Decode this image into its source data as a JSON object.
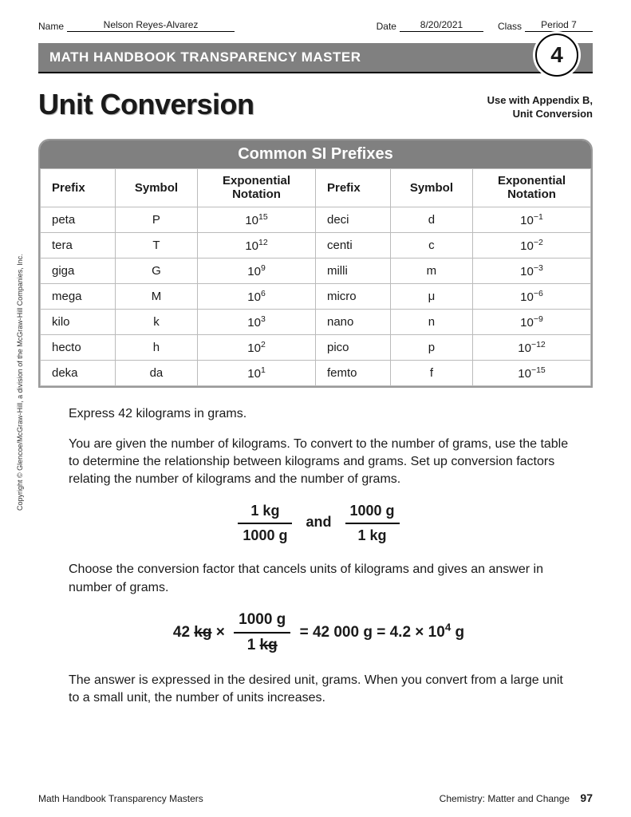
{
  "header": {
    "name_label": "Name",
    "name_value": "Nelson Reyes-Alvarez",
    "date_label": "Date",
    "date_value": "8/20/2021",
    "class_label": "Class",
    "class_value": "Period 7"
  },
  "banner": {
    "text": "MATH HANDBOOK TRANSPARENCY MASTER",
    "badge_number": "4"
  },
  "title": "Unit Conversion",
  "use_with": {
    "line1": "Use with Appendix B,",
    "line2": "Unit Conversion"
  },
  "table": {
    "title": "Common SI Prefixes",
    "headers": {
      "prefix": "Prefix",
      "symbol": "Symbol",
      "notation_l1": "Exponential",
      "notation_l2": "Notation"
    },
    "rows": [
      {
        "prefix": "peta",
        "symbol": "P",
        "base": "10",
        "exp": "15",
        "prefix2": "deci",
        "symbol2": "d",
        "base2": "10",
        "exp2": "−1"
      },
      {
        "prefix": "tera",
        "symbol": "T",
        "base": "10",
        "exp": "12",
        "prefix2": "centi",
        "symbol2": "c",
        "base2": "10",
        "exp2": "−2"
      },
      {
        "prefix": "giga",
        "symbol": "G",
        "base": "10",
        "exp": "9",
        "prefix2": "milli",
        "symbol2": "m",
        "base2": "10",
        "exp2": "−3"
      },
      {
        "prefix": "mega",
        "symbol": "M",
        "base": "10",
        "exp": "6",
        "prefix2": "micro",
        "symbol2": "μ",
        "base2": "10",
        "exp2": "−6"
      },
      {
        "prefix": "kilo",
        "symbol": "k",
        "base": "10",
        "exp": "3",
        "prefix2": "nano",
        "symbol2": "n",
        "base2": "10",
        "exp2": "−9"
      },
      {
        "prefix": "hecto",
        "symbol": "h",
        "base": "10",
        "exp": "2",
        "prefix2": "pico",
        "symbol2": "p",
        "base2": "10",
        "exp2": "−12"
      },
      {
        "prefix": "deka",
        "symbol": "da",
        "base": "10",
        "exp": "1",
        "prefix2": "femto",
        "symbol2": "f",
        "base2": "10",
        "exp2": "−15"
      }
    ]
  },
  "body": {
    "p1": "Express 42 kilograms in grams.",
    "p2": "You are given the number of kilograms. To convert to the number of grams, use the table to determine the relationship between kilograms and grams. Set up conversion factors relating the number of kilograms and the number of grams.",
    "factors": {
      "f1_num": "1 kg",
      "f1_den": "1000 g",
      "and": "and",
      "f2_num": "1000 g",
      "f2_den": "1 kg"
    },
    "p3": "Choose the conversion factor that cancels units of kilograms and gives an answer in number of grams.",
    "equation": {
      "lhs_val": "42 ",
      "lhs_unit_strike": "kg",
      "times": " × ",
      "frac_num_val": "1000 g",
      "frac_den_val": "1 ",
      "frac_den_unit_strike": "kg",
      "eq1": " = 42 000 g = 4.2 × 10",
      "exp": "4",
      "tail": " g"
    },
    "p4": "The answer is expressed in the desired unit, grams. When you convert from a large unit to a small unit, the number of units increases."
  },
  "copyright": "Copyright © Glencoe/McGraw-Hill, a division of the McGraw-Hill Companies, Inc.",
  "footer": {
    "left": "Math Handbook Transparency Masters",
    "right": "Chemistry: Matter and Change",
    "page": "97"
  },
  "style": {
    "banner_bg": "#808080",
    "banner_fg": "#ffffff",
    "table_border": "#bbbbbb"
  }
}
